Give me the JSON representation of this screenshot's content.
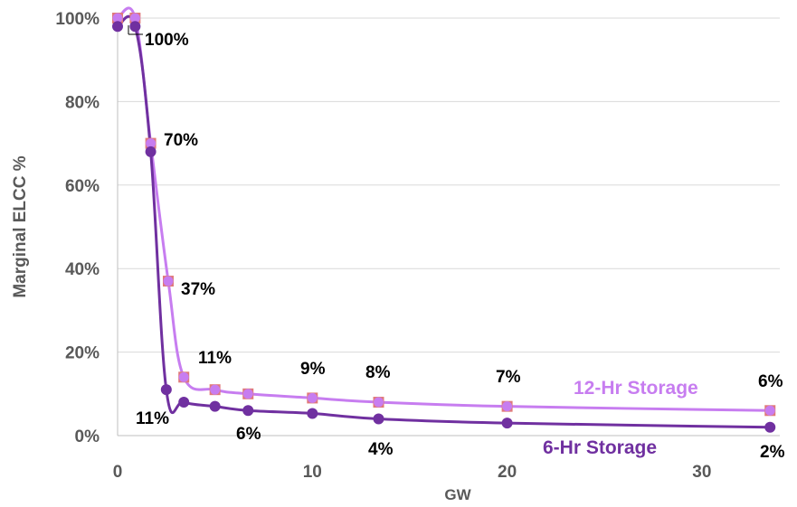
{
  "chart_data": {
    "type": "line",
    "title": "",
    "xlabel": "GW",
    "ylabel": "Marginal ELCC %",
    "xlim": [
      0,
      34
    ],
    "ylim": [
      0,
      100
    ],
    "x_ticks": [
      0,
      10,
      20,
      30
    ],
    "x_tick_labels": [
      "0",
      "10",
      "20",
      "30"
    ],
    "y_ticks": [
      0,
      20,
      40,
      60,
      80,
      100
    ],
    "y_tick_labels": [
      "0%",
      "20%",
      "40%",
      "60%",
      "80%",
      "100%"
    ],
    "grid": "horizontal",
    "series": [
      {
        "name": "12-Hr Storage",
        "color": "#C77DF0",
        "marker_color": "#E07A7A",
        "x": [
          0,
          0.9,
          1.7,
          2.6,
          3.4,
          5.0,
          6.7,
          10.0,
          13.4,
          20.0,
          33.5
        ],
        "y": [
          100,
          100,
          70,
          37,
          14,
          11,
          10,
          9,
          8,
          7,
          6
        ]
      },
      {
        "name": "6-Hr Storage",
        "color": "#7030A0",
        "marker_color": "#7030A0",
        "x": [
          0,
          0.9,
          1.7,
          2.5,
          3.4,
          5.0,
          6.7,
          10.0,
          13.4,
          20.0,
          33.5
        ],
        "y": [
          98,
          98,
          68,
          11,
          8,
          7,
          6,
          5.3,
          4,
          3,
          2
        ]
      }
    ],
    "annotations": [
      "100%",
      "70%",
      "37%",
      "11%",
      "9%",
      "8%",
      "7%",
      "6%",
      "11%",
      "6%",
      "4%",
      "2%"
    ]
  }
}
